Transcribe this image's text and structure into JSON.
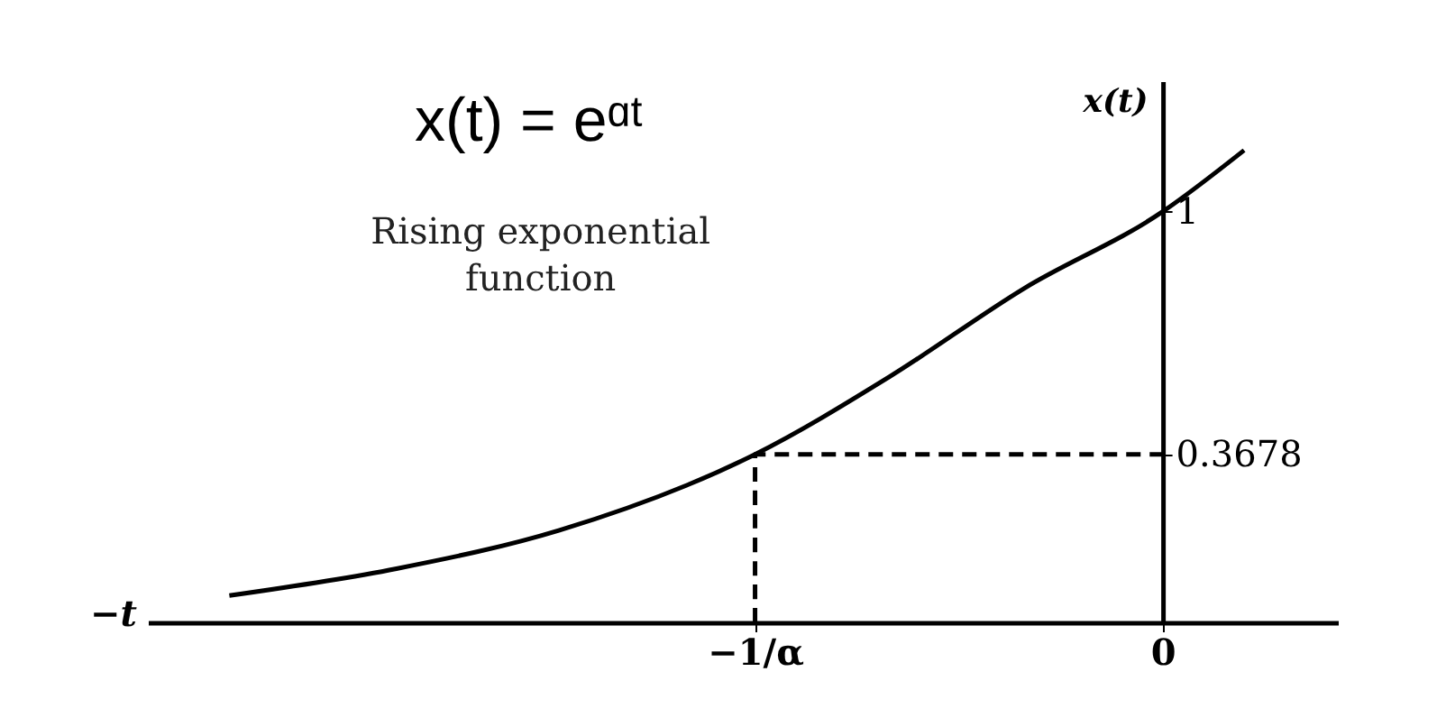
{
  "chart_data": {
    "type": "line",
    "title": "x(t) = eᵅᵗ",
    "xlabel": "−t",
    "ylabel": "x(t)",
    "annotations": [
      "Rising exponential\nfunction"
    ],
    "series": [
      {
        "x": [
          -2.29,
          -1.88,
          -1.48,
          -1.0,
          -0.67,
          -0.34,
          0,
          0.2
        ],
        "values": [
          0.0,
          0.07,
          0.17,
          0.3678,
          0.57,
          0.8,
          1,
          1.16
        ],
        "color": "#000000",
        "line_style": "solid"
      },
      {
        "x": [
          -1,
          -1,
          0
        ],
        "values": [
          -0.07,
          0.3678,
          0.3678
        ],
        "color": "#000000",
        "line_style": "dashed"
      }
    ],
    "xlim": [
      -2.49,
      0.43
    ],
    "ylim": [
      -0.07,
      1.34
    ],
    "xticks": [
      {
        "value": -1,
        "label": "−1/α"
      },
      {
        "value": 0,
        "label": "0"
      }
    ],
    "yticks": [
      {
        "value": 0.3678,
        "label": "0.3678"
      },
      {
        "value": 1,
        "label": "1"
      }
    ],
    "grid": false,
    "marker": "none"
  }
}
